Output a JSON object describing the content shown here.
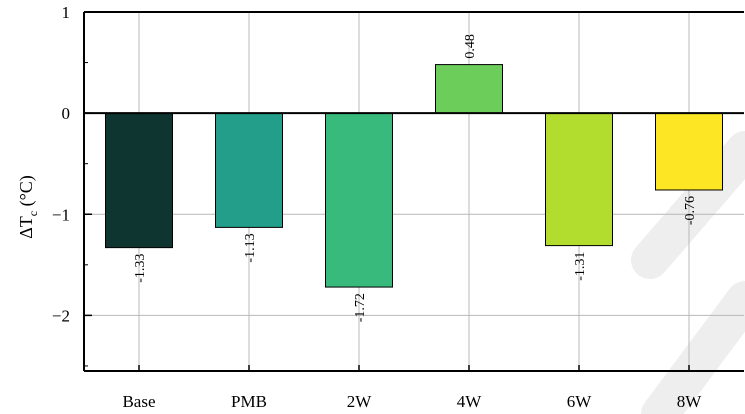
{
  "chart_data": {
    "type": "bar",
    "categories": [
      "Base",
      "PMB",
      "2W",
      "4W",
      "6W",
      "8W"
    ],
    "values": [
      -1.33,
      -1.13,
      -1.72,
      0.48,
      -1.31,
      -0.76
    ],
    "value_labels": [
      "-1.33",
      "-1.13",
      "-1.72",
      "0.48",
      "-1.31",
      "-0.76"
    ],
    "colors": [
      "#0e3530",
      "#229e8a",
      "#38ba7c",
      "#6ccd5b",
      "#b2dd2e",
      "#fde725"
    ],
    "ylabel_main": "ΔT",
    "ylabel_sub": "c",
    "ylabel_unit": " (°C)",
    "yticks": [
      1,
      0,
      -1,
      -2
    ],
    "ytick_labels": [
      "1",
      "0",
      "−1",
      "−2"
    ],
    "ylim": [
      -2.55,
      1.0
    ],
    "grid": true,
    "legend": "none"
  }
}
